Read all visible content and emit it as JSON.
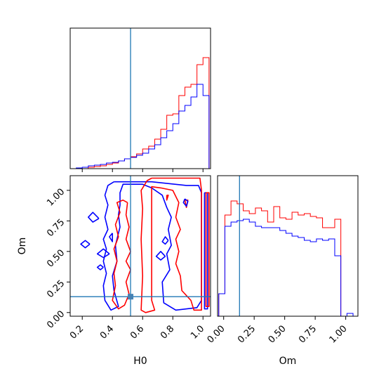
{
  "chart_data": {
    "type": "corner",
    "parameters": [
      "H0",
      "Om"
    ],
    "truths": {
      "H0": 0.52,
      "Om": 0.13
    },
    "truth_color": "#1f77b4",
    "series": [
      {
        "name": "",
        "color": "#ff0000"
      },
      {
        "name": "",
        "color": "#0000ff"
      }
    ],
    "panels": [
      {
        "id": "hist-H0",
        "type": "step-histogram",
        "parameter": "H0",
        "xlim": [
          0.12,
          1.05
        ],
        "bin_edges": [
          0.12,
          0.16,
          0.2,
          0.24,
          0.28,
          0.32,
          0.36,
          0.4,
          0.44,
          0.48,
          0.52,
          0.56,
          0.6,
          0.64,
          0.68,
          0.72,
          0.76,
          0.8,
          0.84,
          0.88,
          0.92,
          0.96,
          1.0,
          1.04
        ],
        "ylim": [
          0,
          100
        ],
        "histograms": [
          {
            "series": 0,
            "counts": [
              0,
              0,
              0,
              1,
              1.5,
              2,
              3,
              4,
              5.5,
              7,
              8.5,
              10.5,
              14,
              16,
              21,
              28,
              38,
              39,
              52,
              58,
              60,
              74,
              79,
              0
            ]
          },
          {
            "series": 1,
            "counts": [
              0,
              0.5,
              1,
              2,
              2.5,
              3,
              4,
              4.5,
              5.5,
              7,
              8,
              9.5,
              11,
              14,
              17,
              22,
              27,
              32,
              41,
              45,
              51,
              60,
              52,
              0
            ]
          }
        ]
      },
      {
        "id": "contour-H0-Om",
        "type": "contour",
        "x": "H0",
        "y": "Om",
        "xlim": [
          0.12,
          1.05
        ],
        "ylim": [
          -0.03,
          1.12
        ],
        "xticks": [
          "0.2",
          "0.4",
          "0.6",
          "0.8",
          "1.0"
        ],
        "yticks": [
          "0.00",
          "0.25",
          "0.50",
          "0.75",
          "1.00"
        ],
        "xlabel": "H0",
        "ylabel": "Om",
        "contours": [
          {
            "series": 1,
            "points": [
              [
                0.41,
                1.07
              ],
              [
                0.66,
                1.07
              ],
              [
                0.89,
                1.04
              ],
              [
                0.97,
                1.04
              ],
              [
                0.99,
                0.98
              ],
              [
                0.99,
                0.1
              ],
              [
                0.96,
                0.04
              ],
              [
                0.82,
                0.02
              ],
              [
                0.74,
                0.08
              ],
              [
                0.73,
                0.25
              ],
              [
                0.78,
                0.35
              ],
              [
                0.76,
                0.48
              ],
              [
                0.79,
                0.55
              ],
              [
                0.77,
                0.68
              ],
              [
                0.79,
                0.78
              ],
              [
                0.76,
                0.86
              ],
              [
                0.73,
                0.96
              ],
              [
                0.66,
                1.02
              ],
              [
                0.6,
                1.05
              ],
              [
                0.47,
                1.05
              ],
              [
                0.45,
                0.98
              ],
              [
                0.45,
                0.88
              ],
              [
                0.44,
                0.8
              ],
              [
                0.45,
                0.7
              ],
              [
                0.42,
                0.55
              ],
              [
                0.43,
                0.42
              ],
              [
                0.4,
                0.3
              ],
              [
                0.41,
                0.18
              ],
              [
                0.44,
                0.05
              ],
              [
                0.39,
                0.02
              ],
              [
                0.35,
                0.1
              ],
              [
                0.34,
                0.22
              ],
              [
                0.36,
                0.32
              ],
              [
                0.34,
                0.42
              ],
              [
                0.36,
                0.52
              ],
              [
                0.34,
                0.6
              ],
              [
                0.37,
                0.68
              ],
              [
                0.35,
                0.78
              ],
              [
                0.37,
                0.88
              ],
              [
                0.35,
                0.96
              ],
              [
                0.37,
                1.04
              ],
              [
                0.41,
                1.07
              ]
            ]
          },
          {
            "series": 1,
            "points": [
              [
                1.01,
                0.98
              ],
              [
                1.03,
                0.98
              ],
              [
                1.03,
                0.03
              ],
              [
                1.01,
                0.03
              ],
              [
                1.01,
                0.98
              ]
            ]
          },
          {
            "series": 0,
            "points": [
              [
                0.66,
                1.1
              ],
              [
                0.98,
                1.1
              ],
              [
                0.99,
                1.0
              ],
              [
                0.99,
                0.02
              ],
              [
                0.94,
                0.02
              ],
              [
                0.92,
                0.1
              ],
              [
                0.86,
                0.18
              ],
              [
                0.85,
                0.3
              ],
              [
                0.82,
                0.4
              ],
              [
                0.84,
                0.5
              ],
              [
                0.82,
                0.6
              ],
              [
                0.85,
                0.68
              ],
              [
                0.82,
                0.78
              ],
              [
                0.84,
                0.9
              ],
              [
                0.8,
                1.0
              ],
              [
                0.72,
                1.02
              ],
              [
                0.66,
                1.03
              ],
              [
                0.66,
                0.1
              ],
              [
                0.68,
                0.02
              ],
              [
                0.62,
                0.0
              ],
              [
                0.59,
                0.02
              ],
              [
                0.6,
                0.3
              ],
              [
                0.59,
                0.6
              ],
              [
                0.6,
                0.85
              ],
              [
                0.59,
                1.0
              ],
              [
                0.63,
                1.08
              ],
              [
                0.66,
                1.1
              ]
            ]
          },
          {
            "series": 0,
            "points": [
              [
                0.5,
                0.9
              ],
              [
                0.49,
                0.8
              ],
              [
                0.51,
                0.7
              ],
              [
                0.49,
                0.6
              ],
              [
                0.52,
                0.5
              ],
              [
                0.49,
                0.42
              ],
              [
                0.52,
                0.35
              ],
              [
                0.49,
                0.25
              ],
              [
                0.51,
                0.15
              ],
              [
                0.48,
                0.06
              ],
              [
                0.44,
                0.03
              ],
              [
                0.4,
                0.1
              ],
              [
                0.42,
                0.22
              ],
              [
                0.41,
                0.32
              ],
              [
                0.43,
                0.42
              ],
              [
                0.41,
                0.52
              ],
              [
                0.44,
                0.62
              ],
              [
                0.42,
                0.72
              ],
              [
                0.45,
                0.82
              ],
              [
                0.43,
                0.9
              ],
              [
                0.47,
                0.92
              ],
              [
                0.5,
                0.9
              ]
            ]
          },
          {
            "series": 0,
            "points": [
              [
                1.02,
                0.98
              ],
              [
                1.04,
                0.98
              ],
              [
                1.04,
                0.05
              ],
              [
                1.02,
                0.05
              ],
              [
                1.02,
                0.98
              ]
            ]
          },
          {
            "series": 0,
            "points": [
              [
                0.88,
                0.92
              ],
              [
                0.89,
                0.86
              ],
              [
                0.9,
                0.92
              ],
              [
                0.88,
                0.92
              ]
            ]
          },
          {
            "series": 0,
            "points": [
              [
                0.76,
                0.96
              ],
              [
                0.76,
                0.92
              ],
              [
                0.77,
                0.96
              ],
              [
                0.76,
                0.96
              ]
            ]
          },
          {
            "series": 1,
            "points": [
              [
                0.31,
                0.77
              ],
              [
                0.27,
                0.82
              ],
              [
                0.24,
                0.78
              ],
              [
                0.27,
                0.74
              ],
              [
                0.31,
                0.77
              ]
            ]
          },
          {
            "series": 1,
            "points": [
              [
                0.25,
                0.56
              ],
              [
                0.22,
                0.59
              ],
              [
                0.19,
                0.56
              ],
              [
                0.22,
                0.53
              ],
              [
                0.25,
                0.56
              ]
            ]
          },
          {
            "series": 1,
            "points": [
              [
                0.4,
                0.65
              ],
              [
                0.38,
                0.62
              ],
              [
                0.4,
                0.58
              ],
              [
                0.4,
                0.65
              ]
            ]
          },
          {
            "series": 1,
            "points": [
              [
                0.38,
                0.48
              ],
              [
                0.34,
                0.52
              ],
              [
                0.3,
                0.48
              ],
              [
                0.34,
                0.45
              ],
              [
                0.38,
                0.48
              ]
            ]
          },
          {
            "series": 1,
            "points": [
              [
                0.34,
                0.37
              ],
              [
                0.32,
                0.39
              ],
              [
                0.3,
                0.37
              ],
              [
                0.32,
                0.35
              ],
              [
                0.34,
                0.37
              ]
            ]
          },
          {
            "series": 1,
            "points": [
              [
                0.77,
                0.59
              ],
              [
                0.75,
                0.62
              ],
              [
                0.73,
                0.58
              ],
              [
                0.75,
                0.56
              ],
              [
                0.77,
                0.59
              ]
            ]
          },
          {
            "series": 1,
            "points": [
              [
                0.75,
                0.46
              ],
              [
                0.72,
                0.5
              ],
              [
                0.69,
                0.46
              ],
              [
                0.72,
                0.43
              ],
              [
                0.75,
                0.46
              ]
            ]
          },
          {
            "series": 1,
            "points": [
              [
                0.88,
                0.93
              ],
              [
                0.87,
                0.9
              ],
              [
                0.89,
                0.87
              ],
              [
                0.9,
                0.91
              ],
              [
                0.88,
                0.93
              ]
            ]
          }
        ]
      },
      {
        "id": "hist-Om",
        "type": "step-histogram",
        "parameter": "Om",
        "xlim": [
          -0.05,
          1.1
        ],
        "bin_edges": [
          -0.04,
          0.01,
          0.06,
          0.11,
          0.16,
          0.21,
          0.26,
          0.31,
          0.36,
          0.41,
          0.46,
          0.51,
          0.56,
          0.61,
          0.66,
          0.71,
          0.76,
          0.81,
          0.86,
          0.91,
          0.96,
          1.01,
          1.06,
          1.1
        ],
        "ylim": [
          0,
          100
        ],
        "xticks": [
          "0.00",
          "0.25",
          "0.50",
          "0.75",
          "1.00"
        ],
        "xlabel": "Om",
        "histograms": [
          {
            "series": 0,
            "counts": [
              16,
              72,
              82,
              80,
              75,
              73,
              77,
              75,
              67,
              78,
              70,
              69,
              74,
              72,
              73,
              71,
              70,
              63,
              63,
              69,
              0,
              0,
              0
            ]
          },
          {
            "series": 1,
            "counts": [
              16,
              64,
              67,
              68,
              69,
              67,
              64,
              63,
              63,
              63,
              61,
              59,
              57,
              56,
              54,
              53,
              55,
              54,
              55,
              43,
              0,
              2,
              0
            ]
          }
        ]
      }
    ]
  }
}
